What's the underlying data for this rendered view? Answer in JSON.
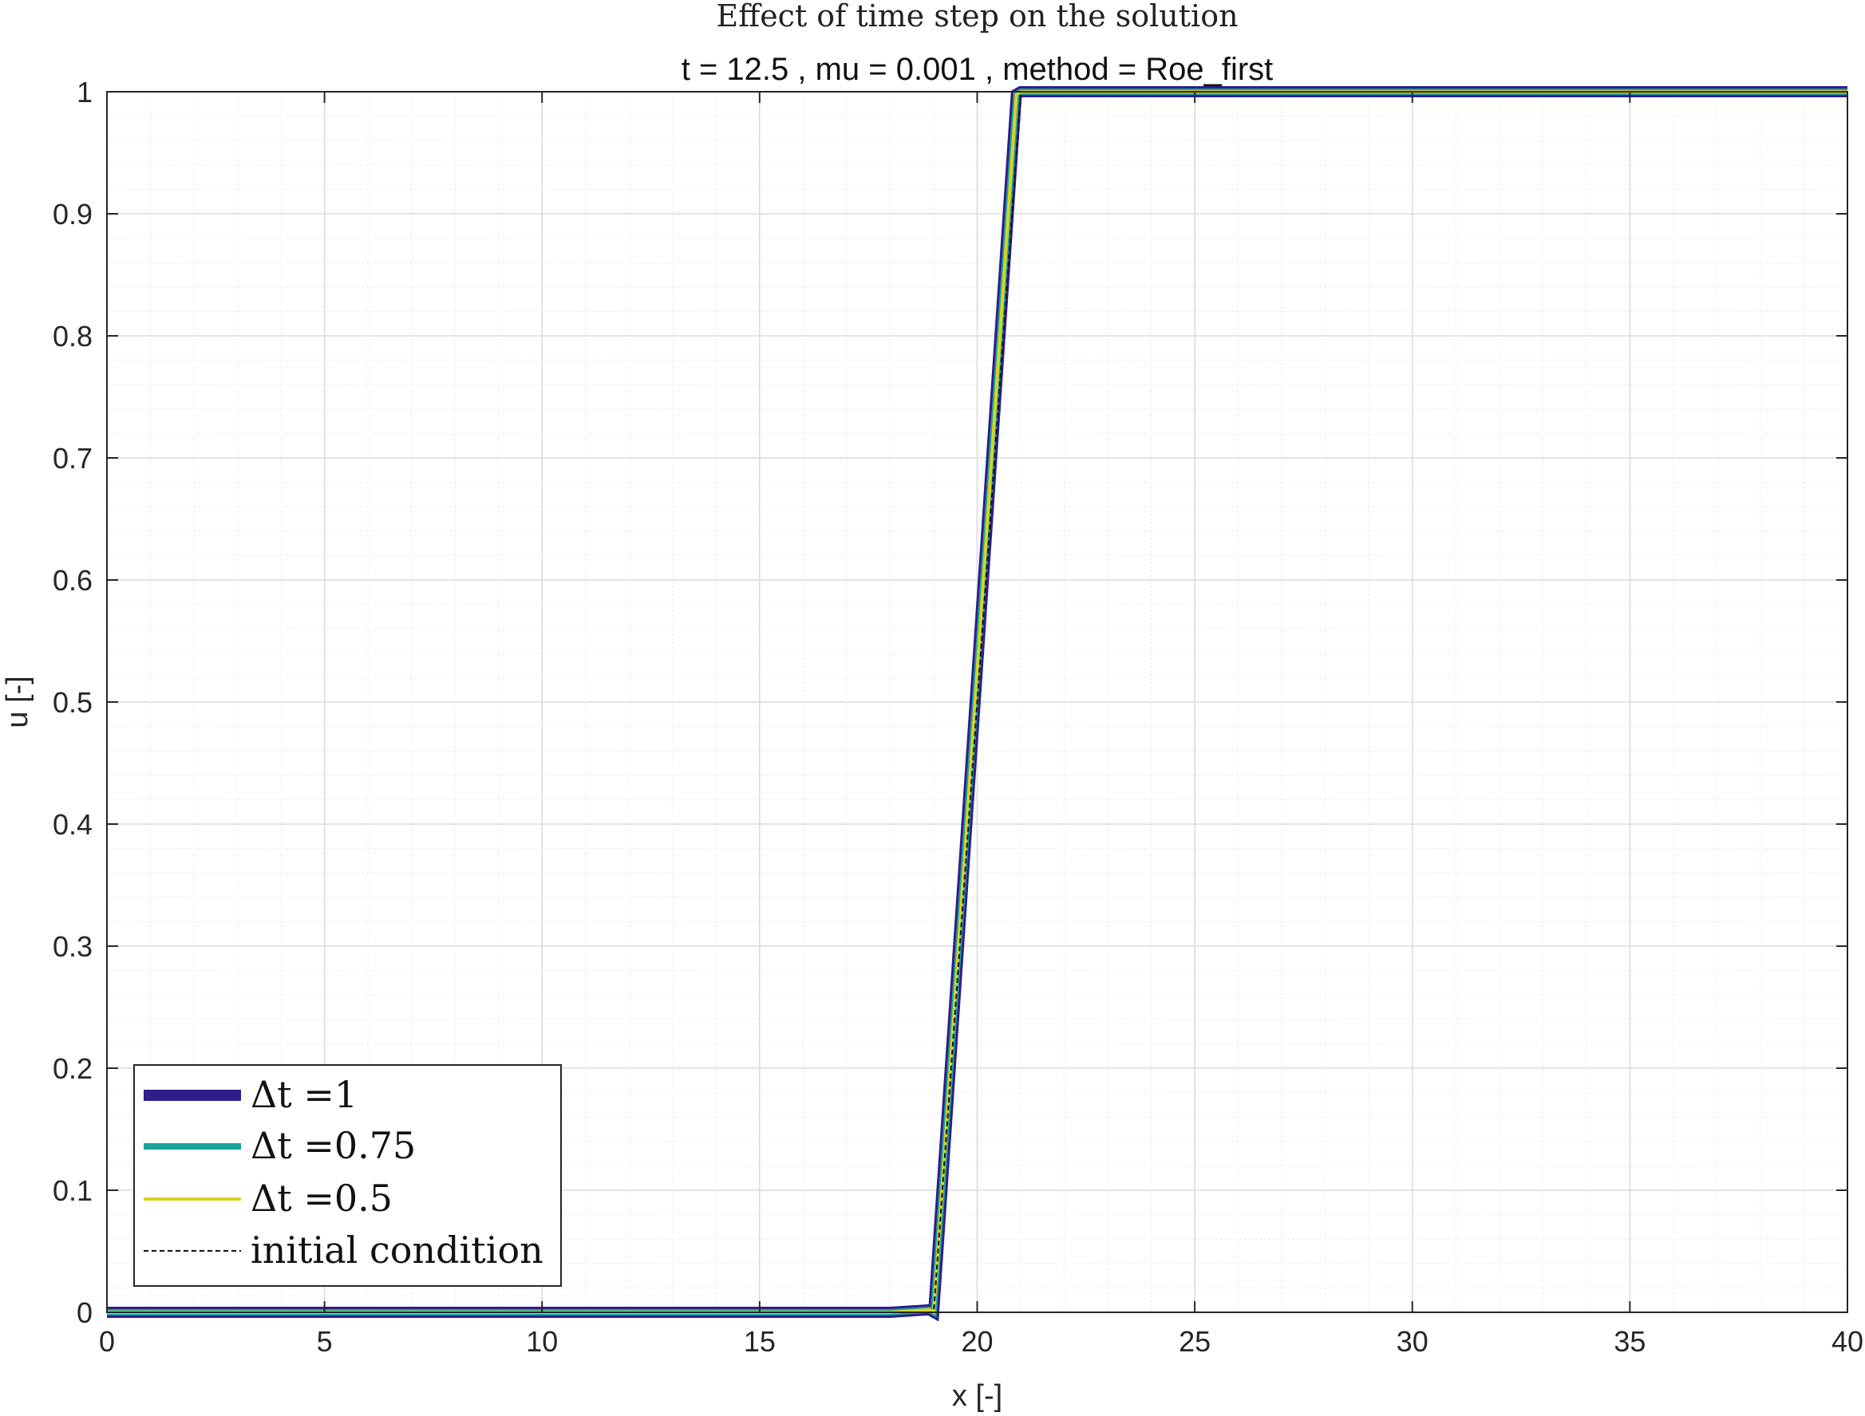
{
  "chart_data": {
    "type": "line",
    "title": "Effect of time step on the solution",
    "subtitle": "t = 12.5 , mu = 0.001 , method = Roe_first",
    "xlabel": "x [-]",
    "ylabel": "u [-]",
    "xlim": [
      0,
      40
    ],
    "ylim": [
      0,
      1
    ],
    "xticks": [
      "0",
      "5",
      "10",
      "15",
      "20",
      "25",
      "30",
      "35",
      "40"
    ],
    "yticks": [
      "0",
      "0.1",
      "0.2",
      "0.3",
      "0.4",
      "0.5",
      "0.6",
      "0.7",
      "0.8",
      "0.9",
      "1"
    ],
    "grid": true,
    "minor_grid": true,
    "legend_position": "bottom-left",
    "series": [
      {
        "name": "Δt =1",
        "color": "#2e1e8c",
        "style": "solid-thick",
        "x": [
          0,
          18,
          18.9,
          19.0,
          20.9,
          21.0,
          40
        ],
        "y": [
          0,
          0,
          0.002,
          0,
          0.998,
          1,
          1
        ]
      },
      {
        "name": "Δt =0.75",
        "color": "#1aa39b",
        "style": "solid-medium",
        "x": [
          0,
          18,
          18.9,
          19.0,
          20.9,
          21.0,
          40
        ],
        "y": [
          0,
          0,
          0.002,
          0,
          0.998,
          1,
          1
        ]
      },
      {
        "name": "Δt =0.5",
        "color": "#d8d422",
        "style": "solid-thin",
        "x": [
          0,
          18,
          18.9,
          19.0,
          20.9,
          21.0,
          40
        ],
        "y": [
          0,
          0,
          0.002,
          0,
          0.998,
          1,
          1
        ]
      },
      {
        "name": "initial condition",
        "color": "#111111",
        "style": "dashed",
        "x": [
          0,
          19,
          21,
          40
        ],
        "y": [
          0,
          0,
          1,
          1
        ]
      }
    ]
  }
}
